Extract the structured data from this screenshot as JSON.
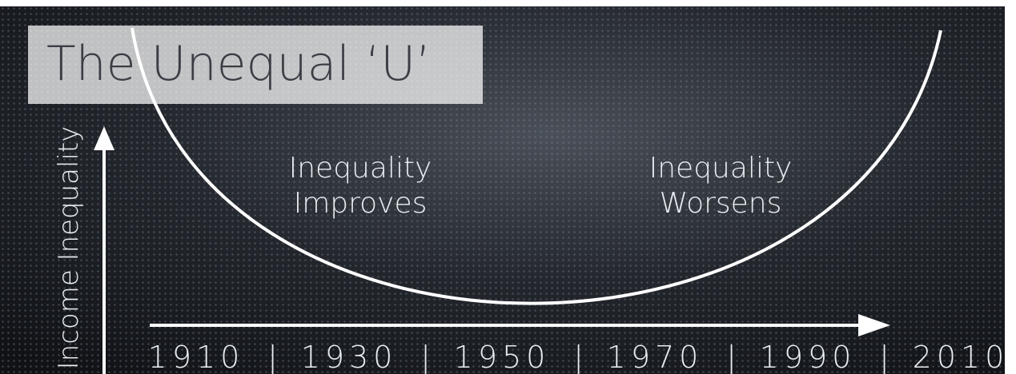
{
  "title": "The Unequal ‘U’",
  "y_axis_label": "Income Inequality",
  "annotations": [
    [
      "Inequality",
      "Improves"
    ],
    [
      "Inequality",
      "Worsens"
    ]
  ],
  "x_labels": [
    "1910",
    "1930",
    "1950",
    "1970",
    "1990",
    "2010"
  ],
  "x_label_separator": "|"
}
